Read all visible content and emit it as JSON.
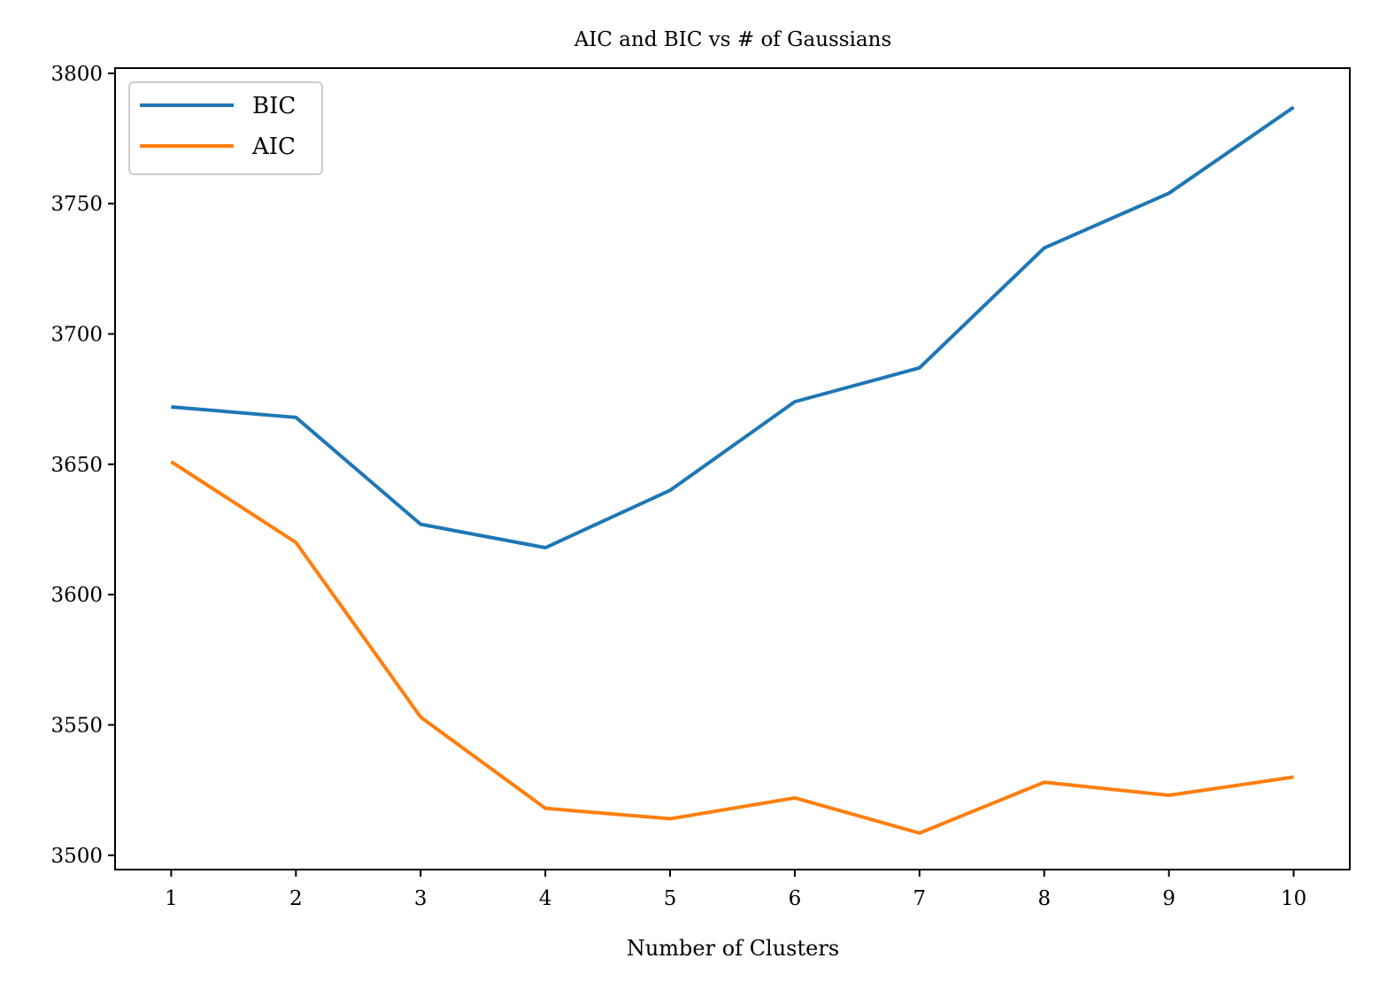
{
  "chart_data": {
    "type": "line",
    "title": "AIC and BIC vs # of Gaussians",
    "xlabel": "Number of Clusters",
    "ylabel": "",
    "x": [
      1,
      2,
      3,
      4,
      5,
      6,
      7,
      8,
      9,
      10
    ],
    "xlim": [
      0.55,
      10.45
    ],
    "ylim": [
      3494.5,
      3802
    ],
    "xticks": [
      "1",
      "2",
      "3",
      "4",
      "5",
      "6",
      "7",
      "8",
      "9",
      "10"
    ],
    "yticks": [
      "3500",
      "3550",
      "3600",
      "3650",
      "3700",
      "3750",
      "3800"
    ],
    "grid": false,
    "legend_position": "top-left",
    "series": [
      {
        "name": "BIC",
        "color": "#1f77b4",
        "values": [
          3672,
          3668,
          3627,
          3618,
          3640,
          3674,
          3687,
          3733,
          3754,
          3787
        ]
      },
      {
        "name": "AIC",
        "color": "#ff7f0e",
        "values": [
          3651,
          3620,
          3553,
          3518,
          3514,
          3522,
          3508.5,
          3528,
          3523,
          3530
        ]
      }
    ]
  }
}
